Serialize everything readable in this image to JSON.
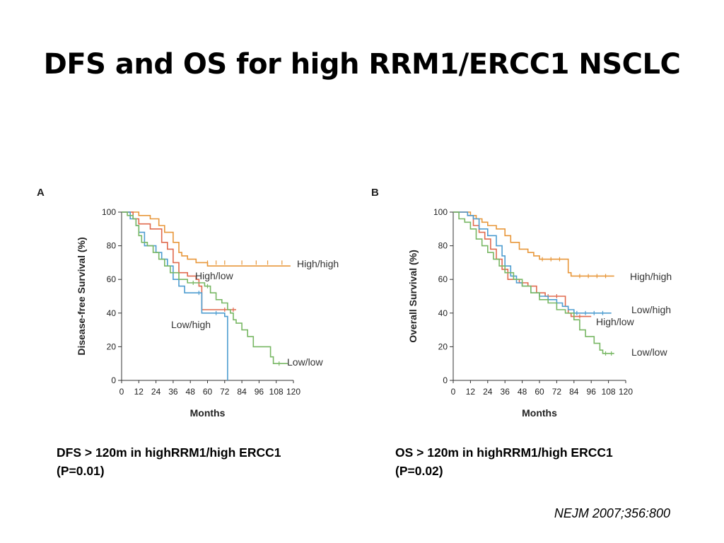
{
  "slide": {
    "title": "DFS and OS for high RRM1/ERCC1 NSCLC",
    "captions": [
      {
        "line1": "DFS > 120m in highRRM1/high ERCC1",
        "line2": "(P=0.01)"
      },
      {
        "line1": "OS > 120m in highRRM1/high ERCC1",
        "line2": "(P=0.02)"
      }
    ],
    "citation": "NEJM 2007;356:800"
  },
  "chart_data": [
    {
      "type": "line",
      "panel_label": "A",
      "xlabel": "Months",
      "ylabel": "Disease-free Survival (%)",
      "xlim": [
        0,
        120
      ],
      "ylim": [
        0,
        100
      ],
      "x_ticks": [
        0,
        12,
        24,
        36,
        48,
        60,
        72,
        84,
        96,
        108,
        120
      ],
      "y_ticks": [
        0,
        20,
        40,
        60,
        80,
        100
      ],
      "series": [
        {
          "name": "High/high",
          "color": "#e8973a",
          "points": [
            [
              0,
              100
            ],
            [
              8,
              100
            ],
            [
              12,
              98
            ],
            [
              20,
              96
            ],
            [
              26,
              92
            ],
            [
              30,
              88
            ],
            [
              36,
              82
            ],
            [
              40,
              76
            ],
            [
              42,
              74
            ],
            [
              46,
              72
            ],
            [
              52,
              70
            ],
            [
              54,
              70
            ],
            [
              60,
              68
            ],
            [
              70,
              68
            ],
            [
              78,
              68
            ],
            [
              90,
              68
            ],
            [
              100,
              68
            ],
            [
              110,
              68
            ],
            [
              118,
              68
            ]
          ],
          "censor": [
            [
              60,
              70
            ],
            [
              66,
              70
            ],
            [
              72,
              70
            ],
            [
              84,
              70
            ],
            [
              94,
              70
            ],
            [
              102,
              70
            ],
            [
              112,
              70
            ]
          ]
        },
        {
          "name": "High/low",
          "color": "#e06a4e",
          "points": [
            [
              0,
              100
            ],
            [
              8,
              96
            ],
            [
              12,
              93
            ],
            [
              14,
              93
            ],
            [
              20,
              90
            ],
            [
              24,
              90
            ],
            [
              28,
              82
            ],
            [
              32,
              78
            ],
            [
              36,
              70
            ],
            [
              40,
              64
            ],
            [
              46,
              62
            ],
            [
              52,
              60
            ],
            [
              54,
              56
            ],
            [
              56,
              42
            ],
            [
              66,
              42
            ],
            [
              76,
              42
            ],
            [
              80,
              42
            ]
          ],
          "censor": [
            [
              72,
              42
            ],
            [
              78,
              42
            ]
          ]
        },
        {
          "name": "Low/high",
          "color": "#4e9dd0",
          "points": [
            [
              0,
              100
            ],
            [
              6,
              96
            ],
            [
              10,
              92
            ],
            [
              12,
              88
            ],
            [
              16,
              80
            ],
            [
              20,
              80
            ],
            [
              24,
              76
            ],
            [
              28,
              72
            ],
            [
              32,
              68
            ],
            [
              36,
              60
            ],
            [
              40,
              56
            ],
            [
              44,
              52
            ],
            [
              48,
              52
            ],
            [
              54,
              52
            ],
            [
              56,
              40
            ],
            [
              70,
              40
            ],
            [
              72,
              38
            ],
            [
              74,
              0
            ]
          ],
          "censor": [
            [
              54,
              52
            ],
            [
              66,
              40
            ]
          ]
        },
        {
          "name": "Low/low",
          "color": "#78b764",
          "points": [
            [
              0,
              100
            ],
            [
              4,
              98
            ],
            [
              8,
              96
            ],
            [
              10,
              92
            ],
            [
              12,
              86
            ],
            [
              14,
              82
            ],
            [
              18,
              80
            ],
            [
              22,
              76
            ],
            [
              26,
              72
            ],
            [
              30,
              68
            ],
            [
              34,
              64
            ],
            [
              40,
              60
            ],
            [
              46,
              58
            ],
            [
              54,
              58
            ],
            [
              58,
              56
            ],
            [
              62,
              52
            ],
            [
              66,
              48
            ],
            [
              70,
              46
            ],
            [
              74,
              42
            ],
            [
              76,
              40
            ],
            [
              78,
              36
            ],
            [
              80,
              34
            ],
            [
              84,
              30
            ],
            [
              88,
              26
            ],
            [
              92,
              20
            ],
            [
              100,
              20
            ],
            [
              104,
              14
            ],
            [
              106,
              10
            ],
            [
              116,
              10
            ]
          ],
          "censor": [
            [
              50,
              58
            ],
            [
              60,
              56
            ],
            [
              110,
              10
            ]
          ]
        }
      ],
      "series_labels": [
        "High/high",
        "High/low",
        "Low/high",
        "Low/low"
      ]
    },
    {
      "type": "line",
      "panel_label": "B",
      "xlabel": "Months",
      "ylabel": "Overall Survival (%)",
      "xlim": [
        0,
        120
      ],
      "ylim": [
        0,
        100
      ],
      "x_ticks": [
        0,
        12,
        24,
        36,
        48,
        60,
        72,
        84,
        96,
        108,
        120
      ],
      "y_ticks": [
        0,
        20,
        40,
        60,
        80,
        100
      ],
      "series": [
        {
          "name": "High/high",
          "color": "#e8973a",
          "points": [
            [
              0,
              100
            ],
            [
              10,
              100
            ],
            [
              12,
              98
            ],
            [
              16,
              96
            ],
            [
              20,
              94
            ],
            [
              24,
              92
            ],
            [
              30,
              90
            ],
            [
              36,
              86
            ],
            [
              40,
              82
            ],
            [
              46,
              78
            ],
            [
              52,
              76
            ],
            [
              56,
              74
            ],
            [
              60,
              72
            ],
            [
              72,
              72
            ],
            [
              78,
              72
            ],
            [
              80,
              64
            ],
            [
              82,
              62
            ],
            [
              90,
              62
            ],
            [
              100,
              62
            ],
            [
              112,
              62
            ]
          ],
          "censor": [
            [
              62,
              72
            ],
            [
              68,
              72
            ],
            [
              74,
              72
            ],
            [
              88,
              62
            ],
            [
              94,
              62
            ],
            [
              100,
              62
            ],
            [
              106,
              62
            ]
          ]
        },
        {
          "name": "High/low",
          "color": "#e06a4e",
          "points": [
            [
              0,
              100
            ],
            [
              10,
              98
            ],
            [
              14,
              92
            ],
            [
              18,
              88
            ],
            [
              22,
              84
            ],
            [
              26,
              78
            ],
            [
              30,
              72
            ],
            [
              34,
              66
            ],
            [
              38,
              60
            ],
            [
              46,
              58
            ],
            [
              52,
              56
            ],
            [
              58,
              52
            ],
            [
              64,
              50
            ],
            [
              76,
              50
            ],
            [
              78,
              44
            ],
            [
              80,
              40
            ],
            [
              82,
              38
            ],
            [
              96,
              38
            ]
          ],
          "censor": [
            [
              66,
              50
            ],
            [
              72,
              50
            ],
            [
              88,
              38
            ]
          ]
        },
        {
          "name": "Low/high",
          "color": "#4e9dd0",
          "points": [
            [
              0,
              100
            ],
            [
              10,
              98
            ],
            [
              14,
              96
            ],
            [
              18,
              90
            ],
            [
              24,
              86
            ],
            [
              30,
              80
            ],
            [
              34,
              74
            ],
            [
              36,
              68
            ],
            [
              40,
              62
            ],
            [
              44,
              58
            ],
            [
              48,
              56
            ],
            [
              54,
              52
            ],
            [
              60,
              50
            ],
            [
              66,
              48
            ],
            [
              72,
              46
            ],
            [
              76,
              44
            ],
            [
              80,
              42
            ],
            [
              84,
              40
            ],
            [
              110,
              40
            ]
          ],
          "censor": [
            [
              86,
              40
            ],
            [
              92,
              40
            ],
            [
              98,
              40
            ],
            [
              104,
              40
            ]
          ]
        },
        {
          "name": "Low/low",
          "color": "#78b764",
          "points": [
            [
              0,
              100
            ],
            [
              4,
              96
            ],
            [
              8,
              94
            ],
            [
              12,
              90
            ],
            [
              16,
              84
            ],
            [
              20,
              80
            ],
            [
              24,
              76
            ],
            [
              28,
              72
            ],
            [
              32,
              68
            ],
            [
              36,
              64
            ],
            [
              42,
              60
            ],
            [
              48,
              56
            ],
            [
              54,
              52
            ],
            [
              60,
              48
            ],
            [
              66,
              46
            ],
            [
              72,
              42
            ],
            [
              78,
              40
            ],
            [
              84,
              36
            ],
            [
              88,
              30
            ],
            [
              92,
              26
            ],
            [
              98,
              22
            ],
            [
              102,
              18
            ],
            [
              104,
              16
            ],
            [
              112,
              16
            ]
          ],
          "censor": [
            [
              106,
              16
            ],
            [
              110,
              16
            ]
          ]
        }
      ],
      "series_labels": [
        "High/high",
        "Low/high",
        "High/low",
        "Low/low"
      ]
    }
  ]
}
